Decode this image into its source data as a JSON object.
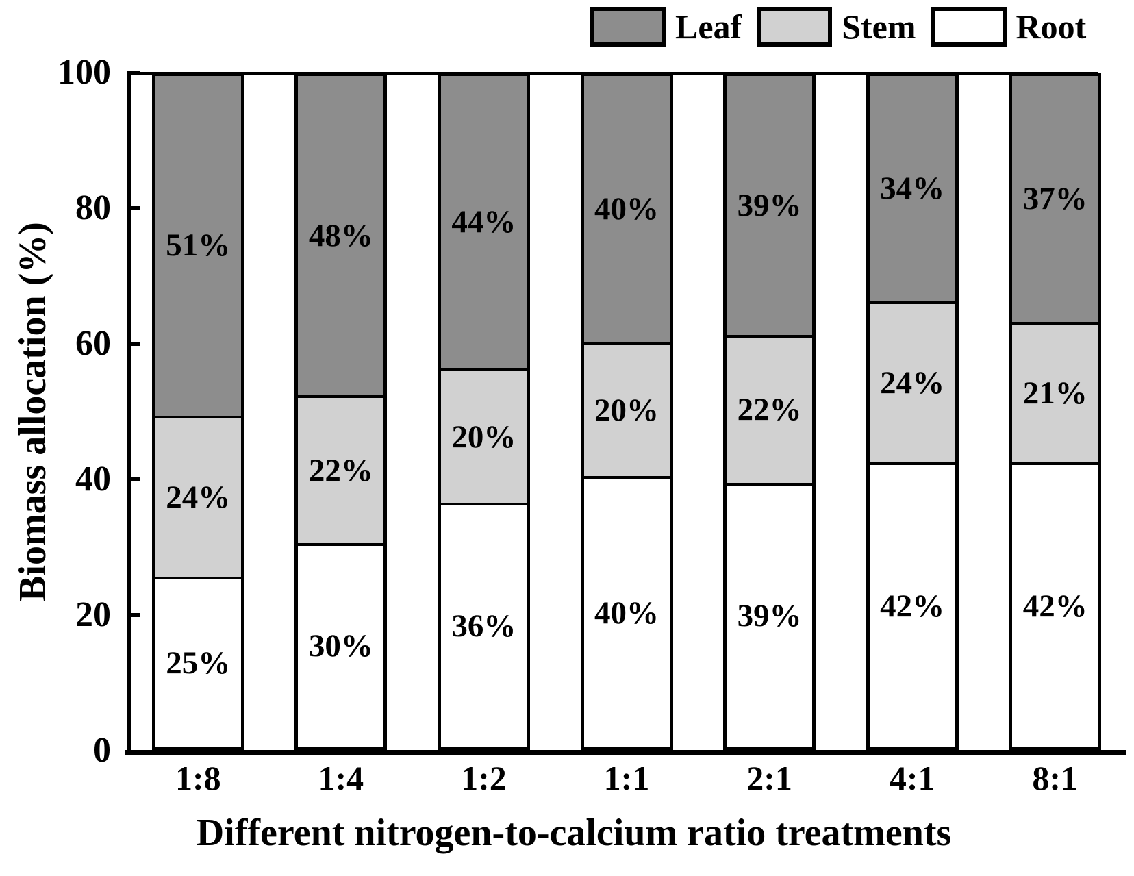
{
  "chart_data": {
    "type": "bar",
    "stacked": true,
    "title": "",
    "xlabel": "Different nitrogen-to-calcium ratio treatments",
    "ylabel": "Biomass allocation (%)",
    "categories": [
      "1:8",
      "1:4",
      "1:2",
      "1:1",
      "2:1",
      "4:1",
      "8:1"
    ],
    "series": [
      {
        "name": "Leaf",
        "color": "#8d8d8d",
        "values": [
          51,
          48,
          44,
          40,
          39,
          34,
          37
        ]
      },
      {
        "name": "Stem",
        "color": "#d1d1d1",
        "values": [
          24,
          22,
          20,
          20,
          22,
          24,
          21
        ]
      },
      {
        "name": "Root",
        "color": "#ffffff",
        "values": [
          25,
          30,
          36,
          40,
          39,
          42,
          42
        ]
      }
    ],
    "stack_order_bottom_to_top": [
      "Root",
      "Stem",
      "Leaf"
    ],
    "value_label_suffix": "%",
    "ylim": [
      0,
      100
    ],
    "yticks": [
      0,
      20,
      40,
      60,
      80,
      100
    ],
    "legend": {
      "position": "top-right",
      "items": [
        "Leaf",
        "Stem",
        "Root"
      ]
    },
    "grid": false,
    "axis_color": "#000000",
    "bar_border_color": "#000000"
  }
}
